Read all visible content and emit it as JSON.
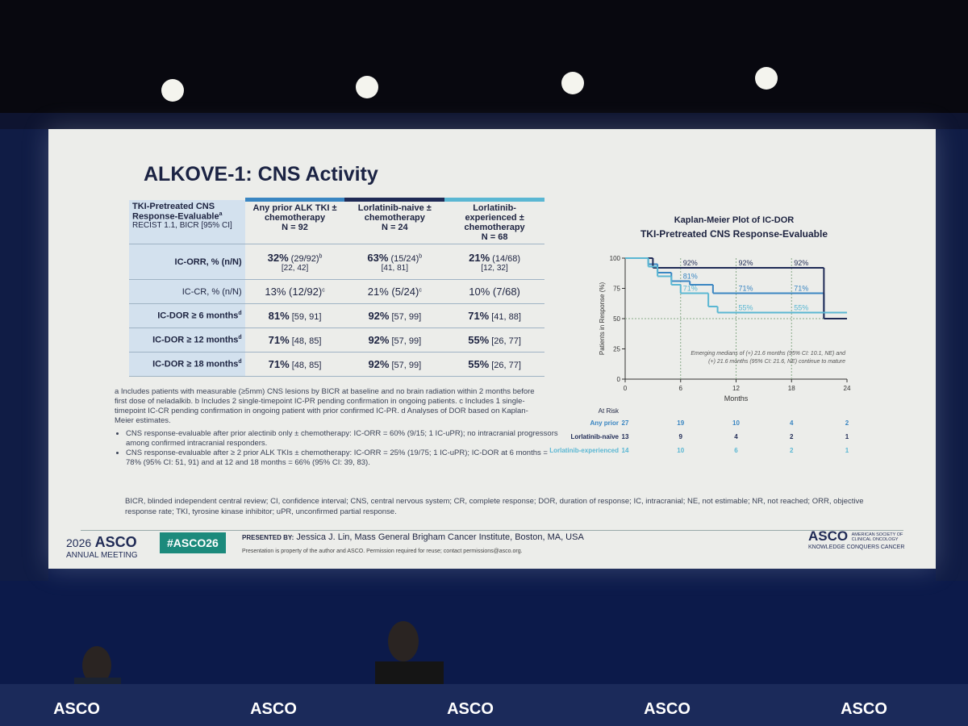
{
  "slide": {
    "title": "ALKOVE-1: CNS Activity",
    "table": {
      "corner": {
        "title": "TKI-Pretreated CNS Response-Evaluable",
        "sup": "a",
        "sub": "RECIST 1.1, BICR [95% CI]"
      },
      "columns": [
        {
          "label": "Any prior ALK TKI ± chemotherapy",
          "n": "N = 92",
          "color": "#3a86c2"
        },
        {
          "label": "Lorlatinib-naive ± chemotherapy",
          "n": "N = 24",
          "color": "#1f2a55"
        },
        {
          "label": "Lorlatinib-experienced ± chemotherapy",
          "n": "N = 68",
          "color": "#5ab7d3"
        }
      ],
      "rows": [
        {
          "label": "IC-ORR, % (n/N)",
          "bold": true,
          "cells": [
            {
              "main": "32%",
              "rest": "(29/92)",
              "sup": "b",
              "ci": "[22, 42]"
            },
            {
              "main": "63%",
              "rest": "(15/24)",
              "sup": "b",
              "ci": "[41, 81]"
            },
            {
              "main": "21%",
              "rest": "(14/68)",
              "ci": "[12, 32]"
            }
          ]
        },
        {
          "label": "IC-CR, % (n/N)",
          "bold": false,
          "cells": [
            {
              "main": "13% (12/92)",
              "sup": "c"
            },
            {
              "main": "21% (5/24)",
              "sup": "c"
            },
            {
              "main": "10% (7/68)"
            }
          ]
        },
        {
          "label": "IC-DOR ≥ 6 months",
          "sup": "d",
          "bold": true,
          "cells": [
            {
              "main": "81%",
              "rest": "[59, 91]"
            },
            {
              "main": "92%",
              "rest": "[57, 99]"
            },
            {
              "main": "71%",
              "rest": "[41, 88]"
            }
          ]
        },
        {
          "label": "IC-DOR ≥ 12 months",
          "sup": "d",
          "bold": true,
          "cells": [
            {
              "main": "71%",
              "rest": "[48, 85]"
            },
            {
              "main": "92%",
              "rest": "[57, 99]"
            },
            {
              "main": "55%",
              "rest": "[26, 77]"
            }
          ]
        },
        {
          "label": "IC-DOR ≥ 18 months",
          "sup": "d",
          "bold": true,
          "cells": [
            {
              "main": "71%",
              "rest": "[48, 85]"
            },
            {
              "main": "92%",
              "rest": "[57, 99]"
            },
            {
              "main": "55%",
              "rest": "[26, 77]"
            }
          ]
        }
      ]
    },
    "footnotes": "a Includes patients with measurable (≥5mm) CNS lesions by BICR at baseline and no brain radiation within 2 months before first dose of neladalkib. b Includes 2 single-timepoint IC-PR pending confirmation in ongoing patients. c Includes 1 single-timepoint IC-CR pending confirmation in ongoing patient with prior confirmed IC-PR. d Analyses of DOR based on Kaplan-Meier estimates.",
    "bullets": [
      "CNS response-evaluable after prior alectinib only ± chemotherapy: IC-ORR = 60% (9/15; 1 IC-uPR); no intracranial progressors among confirmed intracranial responders.",
      "CNS response-evaluable after ≥ 2 prior ALK TKIs ± chemotherapy: IC-ORR = 25% (19/75; 1 IC-uPR); IC-DOR at 6 months = 78% (95% CI: 51, 91) and at 12 and 18 months = 66% (95% CI: 39, 83)."
    ],
    "abbreviations": "BICR, blinded independent central review; CI, confidence interval; CNS, central nervous system; CR, complete response; DOR, duration of response; IC, intracranial; NE, not estimable; NR, not reached; ORR, objective response rate; TKI, tyrosine kinase inhibitor; uPR, unconfirmed partial response.",
    "footer": {
      "meeting_year": "2026",
      "meeting_brand": "ASCO",
      "meeting_sub": "ANNUAL MEETING",
      "hashtag": "#ASCO26",
      "presented_by": "PRESENTED BY:",
      "presenter": "Jessica J. Lin, Mass General Brigham Cancer Institute, Boston, MA, USA",
      "rights": "Presentation is property of the author and ASCO. Permission required for reuse; contact permissions@asco.org.",
      "logo": "ASCO",
      "logo_sub": "AMERICAN SOCIETY OF CLINICAL ONCOLOGY",
      "tagline": "KNOWLEDGE CONQUERS CANCER"
    }
  },
  "chart_data": {
    "type": "step",
    "title": "Kaplan-Meier Plot of IC-DOR",
    "subtitle": "TKI-Pretreated CNS Response-Evaluable",
    "ylabel": "Patients in Response (%)",
    "xlabel": "Months",
    "xlim": [
      0,
      24
    ],
    "xticks": [
      0,
      6,
      12,
      18,
      24
    ],
    "ylim": [
      0,
      100
    ],
    "yticks": [
      0,
      25,
      50,
      75,
      100
    ],
    "at_risk_title": "At Risk",
    "series": [
      {
        "name": "Any prior",
        "color": "#3a86c2",
        "x": [
          0,
          2.5,
          3.5,
          5,
          7,
          9.5,
          21.5,
          24
        ],
        "values": [
          100,
          95,
          88,
          81,
          78,
          71,
          50,
          50
        ],
        "at_risk": [
          27,
          19,
          10,
          4,
          2
        ]
      },
      {
        "name": "Lorlatinib-naïve",
        "color": "#1f2a55",
        "x": [
          0,
          3,
          21.5,
          24
        ],
        "values": [
          100,
          92,
          50,
          50
        ],
        "at_risk": [
          13,
          9,
          4,
          2,
          1
        ]
      },
      {
        "name": "Lorlatinib-experienced",
        "color": "#5ab7d3",
        "x": [
          0,
          2.5,
          3.5,
          5,
          6,
          9,
          10,
          24
        ],
        "values": [
          100,
          93,
          85,
          78,
          71,
          60,
          55,
          55
        ],
        "at_risk": [
          14,
          10,
          6,
          2,
          1
        ]
      }
    ],
    "annotations": [
      {
        "x": 6,
        "y": 92,
        "text": "92%",
        "series": 1
      },
      {
        "x": 12,
        "y": 92,
        "text": "92%",
        "series": 1
      },
      {
        "x": 18,
        "y": 92,
        "text": "92%",
        "series": 1
      },
      {
        "x": 6,
        "y": 81,
        "text": "81%",
        "series": 0
      },
      {
        "x": 12,
        "y": 71,
        "text": "71%",
        "series": 0
      },
      {
        "x": 18,
        "y": 71,
        "text": "71%",
        "series": 0
      },
      {
        "x": 6,
        "y": 71,
        "text": "71%",
        "series": 2
      },
      {
        "x": 12,
        "y": 55,
        "text": "55%",
        "series": 2
      },
      {
        "x": 18,
        "y": 55,
        "text": "55%",
        "series": 2
      }
    ],
    "note": [
      "Emerging medians of (+) 21.6 months (95% CI: 10.1, NE) and",
      "(+) 21.6 months (95% CI: 21.6, NE) continue to mature"
    ]
  },
  "stage": {
    "desk_logos": [
      "ASCO",
      "ASCO",
      "ASCO",
      "ASCO",
      "ASCO"
    ]
  }
}
